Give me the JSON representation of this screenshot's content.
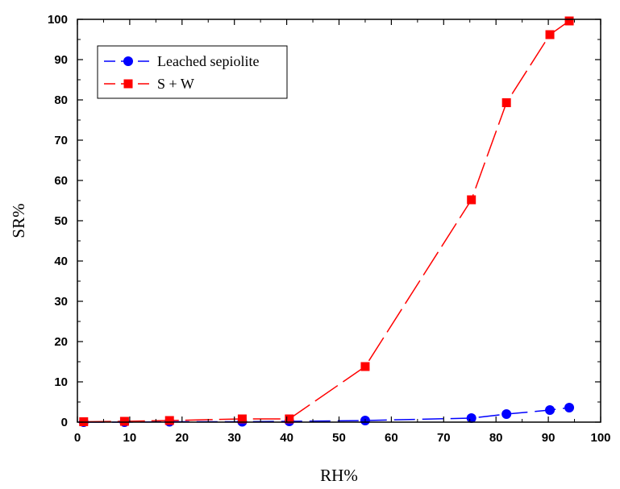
{
  "chart_data": {
    "type": "line",
    "title": "",
    "xlabel": "RH%",
    "ylabel": "SR%",
    "xlim": [
      0,
      100
    ],
    "ylim": [
      0,
      100
    ],
    "xticks": [
      "0",
      "10",
      "20",
      "30",
      "40",
      "50",
      "60",
      "70",
      "80",
      "90",
      "100"
    ],
    "yticks": [
      "0",
      "10",
      "20",
      "30",
      "40",
      "50",
      "60",
      "70",
      "80",
      "90",
      "100"
    ],
    "grid": false,
    "legend_position": "top-left",
    "series": [
      {
        "name": "Leached sepiolite",
        "color": "#0000ff",
        "marker": "circle",
        "line_style": "dashed",
        "x": [
          1.2,
          9.0,
          17.6,
          31.5,
          40.5,
          55.0,
          75.3,
          82.0,
          90.3,
          94.0
        ],
        "y": [
          0.0,
          0.0,
          0.1,
          0.1,
          0.2,
          0.4,
          1.0,
          2.0,
          3.0,
          3.6
        ]
      },
      {
        "name": "S + W",
        "color": "#ff0000",
        "marker": "square",
        "line_style": "dash-solid",
        "x": [
          1.2,
          9.0,
          17.6,
          31.5,
          40.5,
          55.0,
          75.3,
          82.0,
          90.3,
          94.0
        ],
        "y": [
          0.1,
          0.2,
          0.4,
          0.8,
          0.8,
          13.8,
          55.2,
          79.3,
          96.2,
          99.6
        ]
      }
    ]
  }
}
